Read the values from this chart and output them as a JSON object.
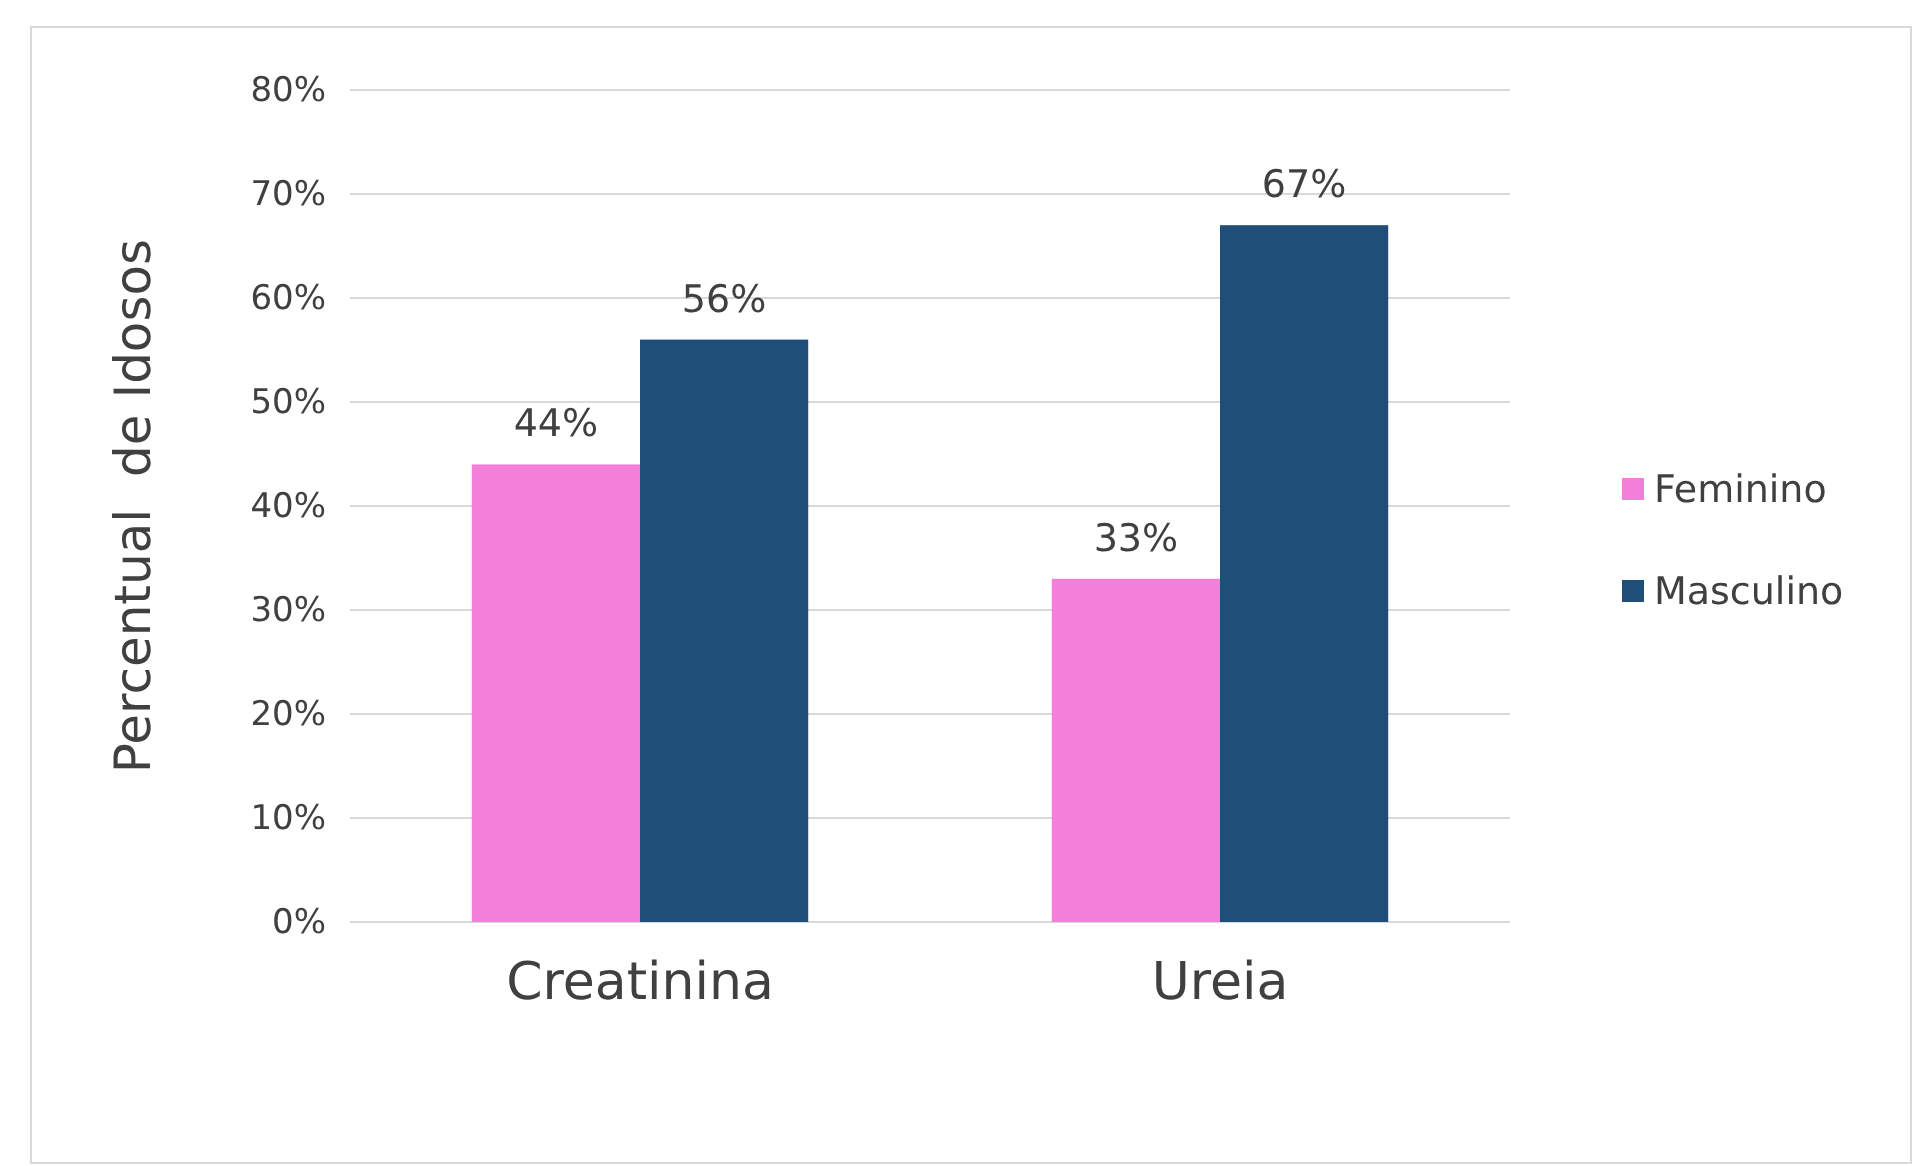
{
  "chart_data": {
    "type": "bar",
    "ylabel": "Percentual  de Idosos",
    "categories": [
      "Creatinina",
      "Ureia"
    ],
    "series": [
      {
        "name": "Feminino",
        "color": "#f47fdb",
        "values": [
          44,
          33
        ],
        "value_labels": [
          "44%",
          "33%"
        ]
      },
      {
        "name": "Masculino",
        "color": "#1f4e79",
        "values": [
          56,
          67
        ],
        "value_labels": [
          "56%",
          "67%"
        ]
      }
    ],
    "ylim": [
      0,
      80
    ],
    "yticks": [
      {
        "value": 0,
        "label": "0%"
      },
      {
        "value": 10,
        "label": "10%"
      },
      {
        "value": 20,
        "label": "20%"
      },
      {
        "value": 30,
        "label": "30%"
      },
      {
        "value": 40,
        "label": "40%"
      },
      {
        "value": 50,
        "label": "50%"
      },
      {
        "value": 60,
        "label": "60%"
      },
      {
        "value": 70,
        "label": "70%"
      },
      {
        "value": 80,
        "label": "80%"
      }
    ],
    "grid": "y",
    "legend": "right"
  }
}
